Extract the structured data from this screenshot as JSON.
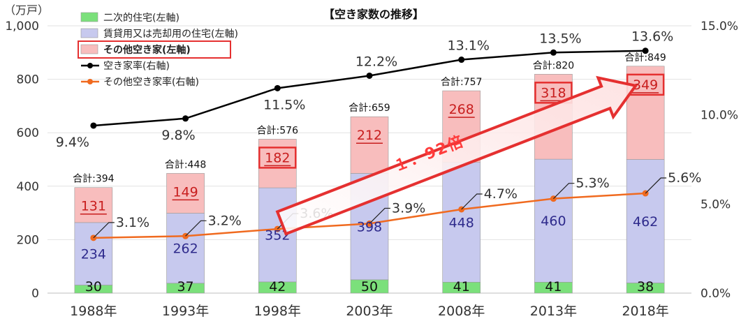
{
  "chart_data": {
    "type": "bar",
    "title": "【空き家数の推移】",
    "y_unit": "（万戸）",
    "categories": [
      "1988年",
      "1993年",
      "1998年",
      "2003年",
      "2008年",
      "2013年",
      "2018年"
    ],
    "ylim": [
      0,
      1000
    ],
    "y_ticks": [
      "0",
      "200",
      "400",
      "600",
      "800",
      "1,000"
    ],
    "y2lim": [
      0,
      15
    ],
    "y2_ticks": [
      "0.0%",
      "5.0%",
      "10.0%",
      "15.0%"
    ],
    "stacked": true,
    "series": [
      {
        "name": "二次的住宅(左軸)",
        "axis": "left",
        "values": [
          30,
          37,
          42,
          50,
          41,
          41,
          38
        ],
        "color": "#7be07b"
      },
      {
        "name": "賃貸用又は売却用の住宅(左軸)",
        "axis": "left",
        "values": [
          234,
          262,
          352,
          398,
          448,
          460,
          462
        ],
        "color": "#c7c9ee"
      },
      {
        "name": "その他空き家(左軸)",
        "axis": "left",
        "values": [
          131,
          149,
          182,
          212,
          268,
          318,
          349
        ],
        "color": "#f8bdbd"
      },
      {
        "name": "空き家率(右軸)",
        "axis": "right",
        "type": "line",
        "values": [
          9.4,
          9.8,
          11.5,
          12.2,
          13.1,
          13.5,
          13.6
        ],
        "labels": [
          "9.4%",
          "9.8%",
          "11.5%",
          "12.2%",
          "13.1%",
          "13.5%",
          "13.6%"
        ],
        "color": "#000000"
      },
      {
        "name": "その他空き家率(右軸)",
        "axis": "right",
        "type": "line",
        "values": [
          3.1,
          3.2,
          3.6,
          3.9,
          4.7,
          5.3,
          5.6
        ],
        "labels": [
          "3.1%",
          "3.2%",
          "3.6%",
          "3.9%",
          "4.7%",
          "5.3%",
          "5.6%"
        ],
        "color": "#f06a1f"
      }
    ],
    "totals": [
      "合計:394",
      "合計:448",
      "合計:576",
      "合計:659",
      "合計:757",
      "合計:820",
      "合計:849"
    ],
    "annotation": "１．92倍",
    "grid": true,
    "legend_position": "top-left"
  }
}
